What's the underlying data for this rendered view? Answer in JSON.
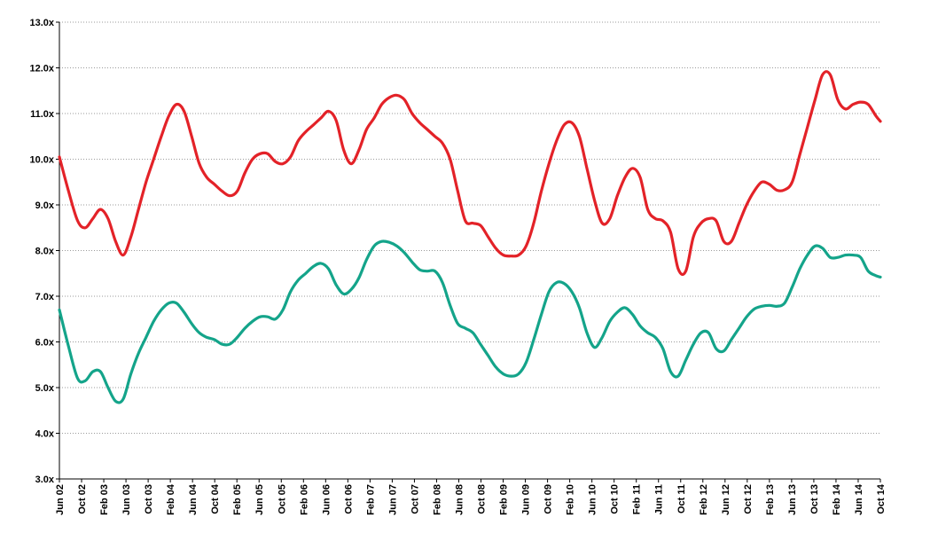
{
  "chart_data": {
    "type": "line",
    "title": "",
    "xlabel": "",
    "ylabel": "",
    "ylim": [
      3.0,
      13.0
    ],
    "yticks": [
      "3.0x",
      "4.0x",
      "5.0x",
      "6.0x",
      "7.0x",
      "8.0x",
      "9.0x",
      "10.0x",
      "11.0x",
      "12.0x",
      "13.0x"
    ],
    "grid": true,
    "legend": "none",
    "x": [
      "Jun 02",
      "Oct 02",
      "Feb 03",
      "Jun 03",
      "Oct 03",
      "Feb 04",
      "Jun 04",
      "Oct 04",
      "Feb 05",
      "Jun 05",
      "Oct 05",
      "Feb 06",
      "Jun 06",
      "Oct 06",
      "Feb 07",
      "Jun 07",
      "Oct 07",
      "Feb 08",
      "Jun 08",
      "Oct 08",
      "Feb 09",
      "Jun 09",
      "Oct 09",
      "Feb 10",
      "Jun 10",
      "Oct 10",
      "Feb 11",
      "Jun 11",
      "Oct 11",
      "Feb 12",
      "Jun 12",
      "Oct 12",
      "Feb 13",
      "Jun 13",
      "Oct 13",
      "Feb 14",
      "Jun 14",
      "Oct 14"
    ],
    "series": [
      {
        "color": "#e32228",
        "points": [
          [
            0,
            10.05
          ],
          [
            0.3,
            9.3
          ],
          [
            0.6,
            8.65
          ],
          [
            0.85,
            8.5
          ],
          [
            1.1,
            8.7
          ],
          [
            1.35,
            8.9
          ],
          [
            1.6,
            8.7
          ],
          [
            1.85,
            8.2
          ],
          [
            2.1,
            7.9
          ],
          [
            2.35,
            8.3
          ],
          [
            2.6,
            8.9
          ],
          [
            2.85,
            9.5
          ],
          [
            3.1,
            10.0
          ],
          [
            3.35,
            10.5
          ],
          [
            3.6,
            10.95
          ],
          [
            3.85,
            11.2
          ],
          [
            4.1,
            11.05
          ],
          [
            4.35,
            10.5
          ],
          [
            4.6,
            9.9
          ],
          [
            4.85,
            9.6
          ],
          [
            5.1,
            9.45
          ],
          [
            5.35,
            9.3
          ],
          [
            5.6,
            9.2
          ],
          [
            5.85,
            9.3
          ],
          [
            6.1,
            9.7
          ],
          [
            6.35,
            10.0
          ],
          [
            6.6,
            10.12
          ],
          [
            6.85,
            10.12
          ],
          [
            7.1,
            9.95
          ],
          [
            7.35,
            9.9
          ],
          [
            7.6,
            10.05
          ],
          [
            7.85,
            10.4
          ],
          [
            8.1,
            10.6
          ],
          [
            8.35,
            10.75
          ],
          [
            8.6,
            10.9
          ],
          [
            8.85,
            11.05
          ],
          [
            9.1,
            10.85
          ],
          [
            9.35,
            10.2
          ],
          [
            9.6,
            9.9
          ],
          [
            9.85,
            10.2
          ],
          [
            10.1,
            10.65
          ],
          [
            10.35,
            10.9
          ],
          [
            10.6,
            11.2
          ],
          [
            10.85,
            11.35
          ],
          [
            11.1,
            11.4
          ],
          [
            11.35,
            11.3
          ],
          [
            11.6,
            11.0
          ],
          [
            11.85,
            10.8
          ],
          [
            12.1,
            10.65
          ],
          [
            12.35,
            10.5
          ],
          [
            12.6,
            10.35
          ],
          [
            12.85,
            10.0
          ],
          [
            13.1,
            9.3
          ],
          [
            13.35,
            8.65
          ],
          [
            13.6,
            8.6
          ],
          [
            13.85,
            8.55
          ],
          [
            14.1,
            8.3
          ],
          [
            14.35,
            8.05
          ],
          [
            14.6,
            7.9
          ],
          [
            14.85,
            7.88
          ],
          [
            15.1,
            7.9
          ],
          [
            15.35,
            8.1
          ],
          [
            15.6,
            8.6
          ],
          [
            15.85,
            9.3
          ],
          [
            16.1,
            9.9
          ],
          [
            16.35,
            10.4
          ],
          [
            16.6,
            10.75
          ],
          [
            16.85,
            10.8
          ],
          [
            17.1,
            10.5
          ],
          [
            17.35,
            9.8
          ],
          [
            17.6,
            9.1
          ],
          [
            17.85,
            8.6
          ],
          [
            18.1,
            8.7
          ],
          [
            18.35,
            9.2
          ],
          [
            18.6,
            9.6
          ],
          [
            18.85,
            9.8
          ],
          [
            19.1,
            9.6
          ],
          [
            19.35,
            8.9
          ],
          [
            19.6,
            8.7
          ],
          [
            19.85,
            8.65
          ],
          [
            20.1,
            8.4
          ],
          [
            20.35,
            7.6
          ],
          [
            20.6,
            7.55
          ],
          [
            20.85,
            8.3
          ],
          [
            21.1,
            8.6
          ],
          [
            21.35,
            8.7
          ],
          [
            21.6,
            8.65
          ],
          [
            21.85,
            8.2
          ],
          [
            22.1,
            8.2
          ],
          [
            22.35,
            8.6
          ],
          [
            22.6,
            9.0
          ],
          [
            22.85,
            9.3
          ],
          [
            23.1,
            9.5
          ],
          [
            23.35,
            9.45
          ],
          [
            23.6,
            9.32
          ],
          [
            23.85,
            9.33
          ],
          [
            24.1,
            9.5
          ],
          [
            24.35,
            10.1
          ],
          [
            24.6,
            10.7
          ],
          [
            24.85,
            11.3
          ],
          [
            25.1,
            11.85
          ],
          [
            25.35,
            11.85
          ],
          [
            25.6,
            11.3
          ],
          [
            25.85,
            11.1
          ],
          [
            26.1,
            11.2
          ],
          [
            26.35,
            11.25
          ],
          [
            26.6,
            11.2
          ],
          [
            26.85,
            10.95
          ],
          [
            27.0,
            10.83
          ]
        ]
      },
      {
        "color": "#14a48a",
        "points": [
          [
            0,
            6.7
          ],
          [
            0.3,
            5.9
          ],
          [
            0.6,
            5.2
          ],
          [
            0.85,
            5.15
          ],
          [
            1.1,
            5.35
          ],
          [
            1.35,
            5.35
          ],
          [
            1.6,
            5.0
          ],
          [
            1.85,
            4.7
          ],
          [
            2.1,
            4.75
          ],
          [
            2.35,
            5.3
          ],
          [
            2.6,
            5.75
          ],
          [
            2.85,
            6.1
          ],
          [
            3.1,
            6.45
          ],
          [
            3.35,
            6.7
          ],
          [
            3.6,
            6.85
          ],
          [
            3.85,
            6.85
          ],
          [
            4.1,
            6.65
          ],
          [
            4.35,
            6.4
          ],
          [
            4.6,
            6.2
          ],
          [
            4.85,
            6.1
          ],
          [
            5.1,
            6.05
          ],
          [
            5.35,
            5.95
          ],
          [
            5.6,
            5.95
          ],
          [
            5.85,
            6.1
          ],
          [
            6.1,
            6.3
          ],
          [
            6.35,
            6.45
          ],
          [
            6.6,
            6.55
          ],
          [
            6.85,
            6.55
          ],
          [
            7.1,
            6.5
          ],
          [
            7.35,
            6.7
          ],
          [
            7.6,
            7.1
          ],
          [
            7.85,
            7.35
          ],
          [
            8.1,
            7.5
          ],
          [
            8.35,
            7.65
          ],
          [
            8.6,
            7.72
          ],
          [
            8.85,
            7.6
          ],
          [
            9.1,
            7.25
          ],
          [
            9.35,
            7.05
          ],
          [
            9.6,
            7.15
          ],
          [
            9.85,
            7.4
          ],
          [
            10.1,
            7.8
          ],
          [
            10.35,
            8.1
          ],
          [
            10.6,
            8.2
          ],
          [
            10.85,
            8.18
          ],
          [
            11.1,
            8.1
          ],
          [
            11.35,
            7.95
          ],
          [
            11.6,
            7.75
          ],
          [
            11.85,
            7.58
          ],
          [
            12.1,
            7.55
          ],
          [
            12.35,
            7.55
          ],
          [
            12.6,
            7.3
          ],
          [
            12.85,
            6.8
          ],
          [
            13.1,
            6.4
          ],
          [
            13.35,
            6.3
          ],
          [
            13.6,
            6.2
          ],
          [
            13.85,
            5.95
          ],
          [
            14.1,
            5.7
          ],
          [
            14.35,
            5.45
          ],
          [
            14.6,
            5.3
          ],
          [
            14.85,
            5.25
          ],
          [
            15.1,
            5.3
          ],
          [
            15.35,
            5.55
          ],
          [
            15.6,
            6.05
          ],
          [
            15.85,
            6.6
          ],
          [
            16.1,
            7.1
          ],
          [
            16.35,
            7.3
          ],
          [
            16.6,
            7.28
          ],
          [
            16.85,
            7.1
          ],
          [
            17.1,
            6.75
          ],
          [
            17.35,
            6.2
          ],
          [
            17.6,
            5.88
          ],
          [
            17.85,
            6.1
          ],
          [
            18.1,
            6.45
          ],
          [
            18.35,
            6.65
          ],
          [
            18.6,
            6.75
          ],
          [
            18.85,
            6.6
          ],
          [
            19.1,
            6.35
          ],
          [
            19.35,
            6.2
          ],
          [
            19.6,
            6.1
          ],
          [
            19.85,
            5.85
          ],
          [
            20.1,
            5.35
          ],
          [
            20.35,
            5.25
          ],
          [
            20.6,
            5.6
          ],
          [
            20.85,
            5.95
          ],
          [
            21.1,
            6.2
          ],
          [
            21.35,
            6.2
          ],
          [
            21.6,
            5.85
          ],
          [
            21.85,
            5.8
          ],
          [
            22.1,
            6.05
          ],
          [
            22.35,
            6.3
          ],
          [
            22.6,
            6.55
          ],
          [
            22.85,
            6.72
          ],
          [
            23.1,
            6.78
          ],
          [
            23.35,
            6.8
          ],
          [
            23.6,
            6.78
          ],
          [
            23.85,
            6.85
          ],
          [
            24.1,
            7.2
          ],
          [
            24.35,
            7.6
          ],
          [
            24.6,
            7.9
          ],
          [
            24.85,
            8.1
          ],
          [
            25.1,
            8.05
          ],
          [
            25.35,
            7.85
          ],
          [
            25.6,
            7.85
          ],
          [
            25.85,
            7.9
          ],
          [
            26.1,
            7.9
          ],
          [
            26.35,
            7.85
          ],
          [
            26.6,
            7.55
          ],
          [
            26.85,
            7.45
          ],
          [
            27.0,
            7.42
          ]
        ]
      }
    ]
  }
}
